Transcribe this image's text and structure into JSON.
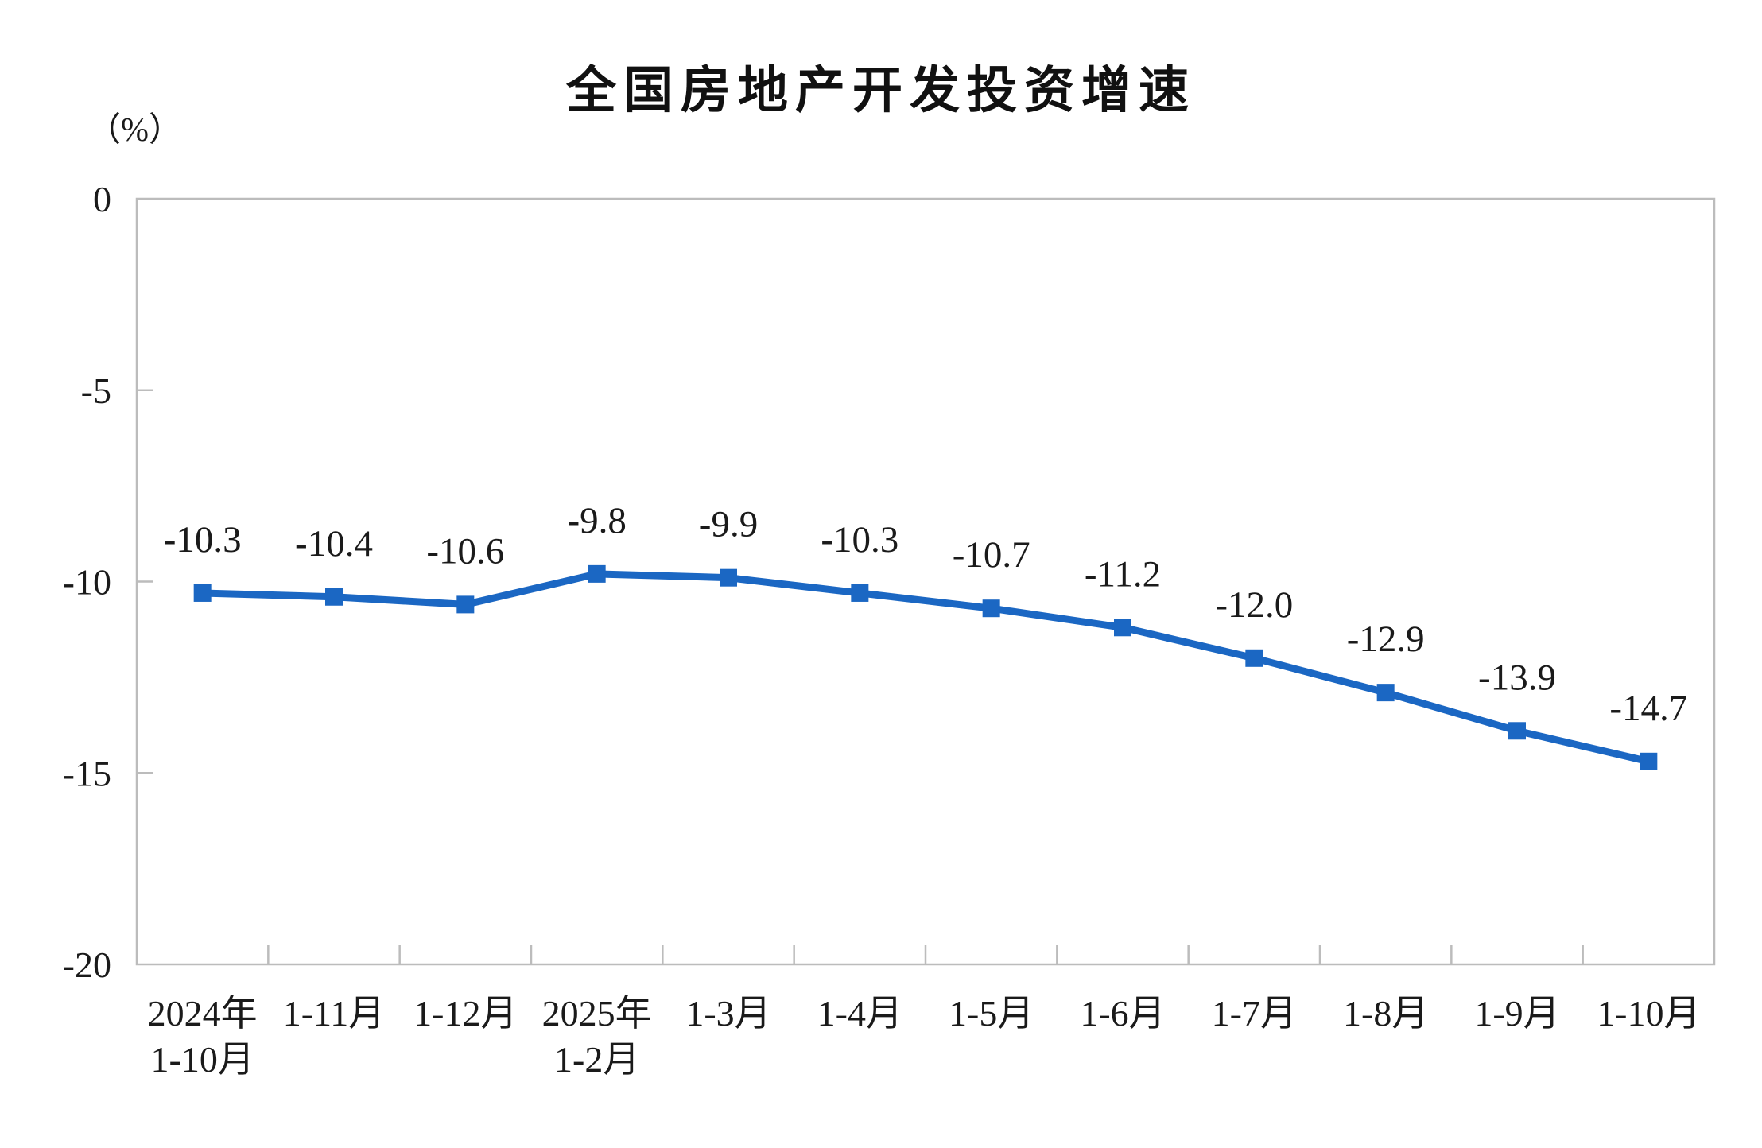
{
  "page": {
    "background": "#ffffff"
  },
  "chart_data": {
    "type": "line",
    "title": "全国房地产开发投资增速",
    "unit_label": "（%）",
    "categories": [
      [
        "2024年",
        "1-10月"
      ],
      [
        "1-11月"
      ],
      [
        "1-12月"
      ],
      [
        "2025年",
        "1-2月"
      ],
      [
        "1-3月"
      ],
      [
        "1-4月"
      ],
      [
        "1-5月"
      ],
      [
        "1-6月"
      ],
      [
        "1-7月"
      ],
      [
        "1-8月"
      ],
      [
        "1-9月"
      ],
      [
        "1-10月"
      ]
    ],
    "values": [
      -10.3,
      -10.4,
      -10.6,
      -9.8,
      -9.9,
      -10.3,
      -10.7,
      -11.2,
      -12.0,
      -12.9,
      -13.9,
      -14.7
    ],
    "data_labels": [
      "-10.3",
      "-10.4",
      "-10.6",
      "-9.8",
      "-9.9",
      "-10.3",
      "-10.7",
      "-11.2",
      "-12.0",
      "-12.9",
      "-13.9",
      "-14.7"
    ],
    "ylim": [
      -20,
      0
    ],
    "y_ticks": [
      0,
      -5,
      -10,
      -15,
      -20
    ],
    "y_tick_labels": [
      "0",
      "-5",
      "-10",
      "-15",
      "-20"
    ],
    "grid": false,
    "legend": false,
    "marker": "square",
    "colors": {
      "line": "#1b67c3",
      "marker": "#1b67c3",
      "axis": "#bcbcbc",
      "text": "#1a1a1a",
      "title": "#111111"
    }
  }
}
